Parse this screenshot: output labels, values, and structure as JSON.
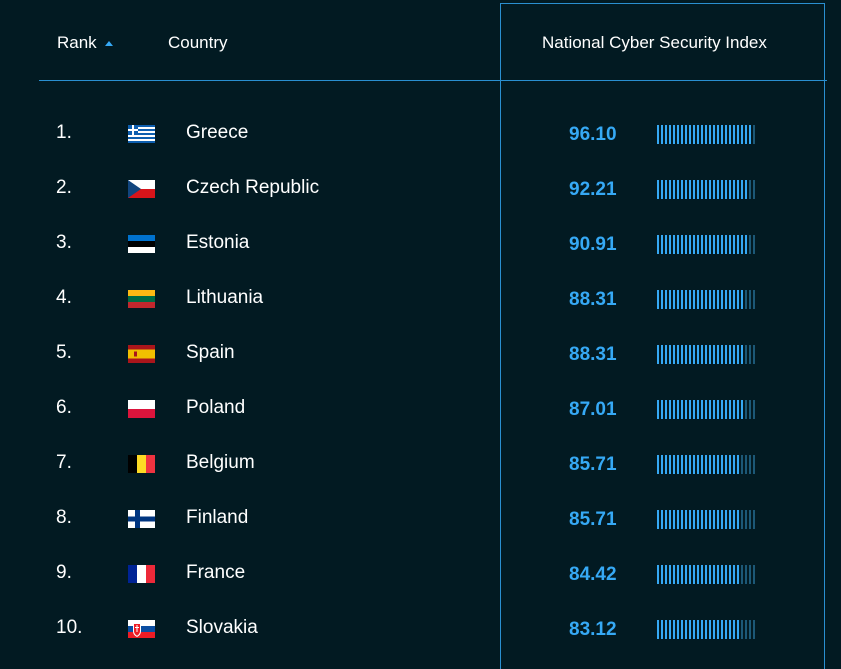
{
  "header": {
    "rank_label": "Rank",
    "country_label": "Country",
    "index_label": "National Cyber Security Index",
    "sort_direction": "ascending"
  },
  "colors": {
    "background": "#021a22",
    "accent": "#36a9f5",
    "bar_filled": "#36a9f5",
    "bar_empty": "#1c5877"
  },
  "bar_segments": 25,
  "rows": [
    {
      "rank": "1.",
      "country": "Greece",
      "flag": "greece-flag-icon",
      "score": "96.10",
      "value": 96.1
    },
    {
      "rank": "2.",
      "country": "Czech Republic",
      "flag": "czech-republic-flag-icon",
      "score": "92.21",
      "value": 92.21
    },
    {
      "rank": "3.",
      "country": "Estonia",
      "flag": "estonia-flag-icon",
      "score": "90.91",
      "value": 90.91
    },
    {
      "rank": "4.",
      "country": "Lithuania",
      "flag": "lithuania-flag-icon",
      "score": "88.31",
      "value": 88.31
    },
    {
      "rank": "5.",
      "country": "Spain",
      "flag": "spain-flag-icon",
      "score": "88.31",
      "value": 88.31
    },
    {
      "rank": "6.",
      "country": "Poland",
      "flag": "poland-flag-icon",
      "score": "87.01",
      "value": 87.01
    },
    {
      "rank": "7.",
      "country": "Belgium",
      "flag": "belgium-flag-icon",
      "score": "85.71",
      "value": 85.71
    },
    {
      "rank": "8.",
      "country": "Finland",
      "flag": "finland-flag-icon",
      "score": "85.71",
      "value": 85.71
    },
    {
      "rank": "9.",
      "country": "France",
      "flag": "france-flag-icon",
      "score": "84.42",
      "value": 84.42
    },
    {
      "rank": "10.",
      "country": "Slovakia",
      "flag": "slovakia-flag-icon",
      "score": "83.12",
      "value": 83.12
    }
  ]
}
